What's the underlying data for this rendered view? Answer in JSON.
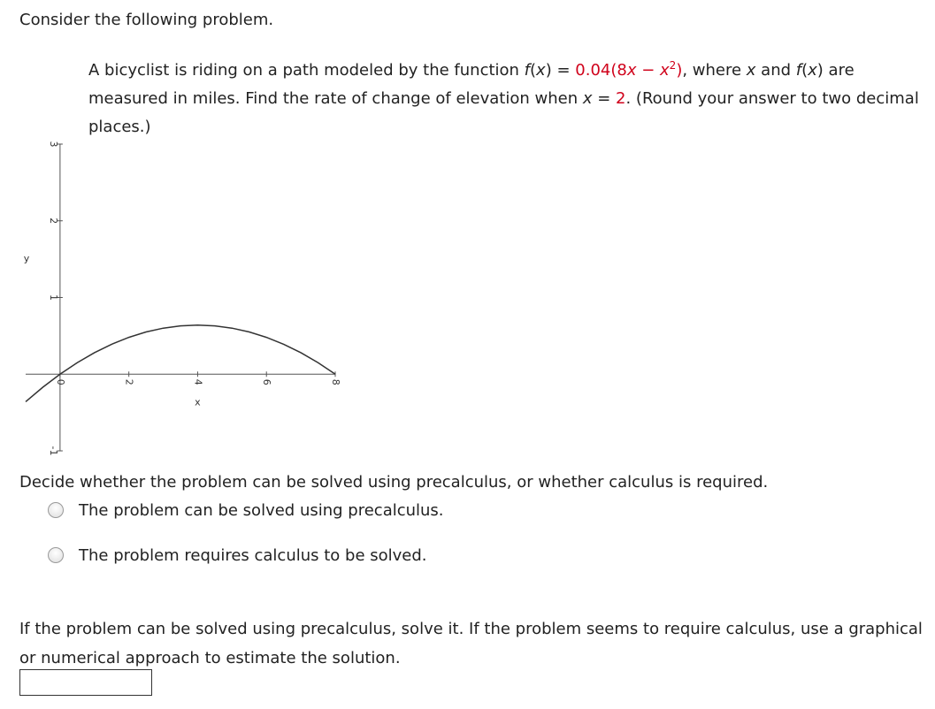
{
  "intro": "Consider the following problem.",
  "problem": [
    "A bicyclist is riding on a path modeled by the function ",
    "f",
    "(",
    "x",
    ") = ",
    "0.04(8",
    "x",
    " − ",
    "x",
    "2",
    ")",
    ", where ",
    "x",
    " and ",
    "f",
    "(",
    "x",
    ")",
    " are measured in miles. Find the rate of change of elevation when ",
    "x",
    " = ",
    "2",
    ". (Round your answer to two decimal places.)"
  ],
  "chart_data": {
    "type": "line",
    "x_label": "x",
    "y_label": "y",
    "x": [
      -1,
      -0.5,
      0,
      0.5,
      1,
      1.5,
      2,
      2.5,
      3,
      3.5,
      4,
      4.5,
      5,
      5.5,
      6,
      6.5,
      7,
      7.5,
      8
    ],
    "series": [
      {
        "color": "#333333",
        "values": [
          -0.36,
          -0.17,
          0,
          0.15,
          0.28,
          0.39,
          0.48,
          0.55,
          0.6,
          0.63,
          0.64,
          0.63,
          0.6,
          0.55,
          0.48,
          0.39,
          0.28,
          0.15,
          0
        ]
      }
    ],
    "xlim": [
      -1,
      8
    ],
    "ylim": [
      -1,
      3
    ],
    "xticks": [
      0,
      2,
      4,
      6,
      8
    ],
    "yticks": [
      -1,
      1,
      2,
      3
    ]
  },
  "question": "Decide whether the problem can be solved using precalculus, or whether calculus is required.",
  "options": [
    "The problem can be solved using precalculus.",
    "The problem requires calculus to be solved."
  ],
  "instruction": "If the problem can be solved using precalculus, solve it. If the problem seems to require calculus, use a graphical or numerical approach to estimate the solution."
}
